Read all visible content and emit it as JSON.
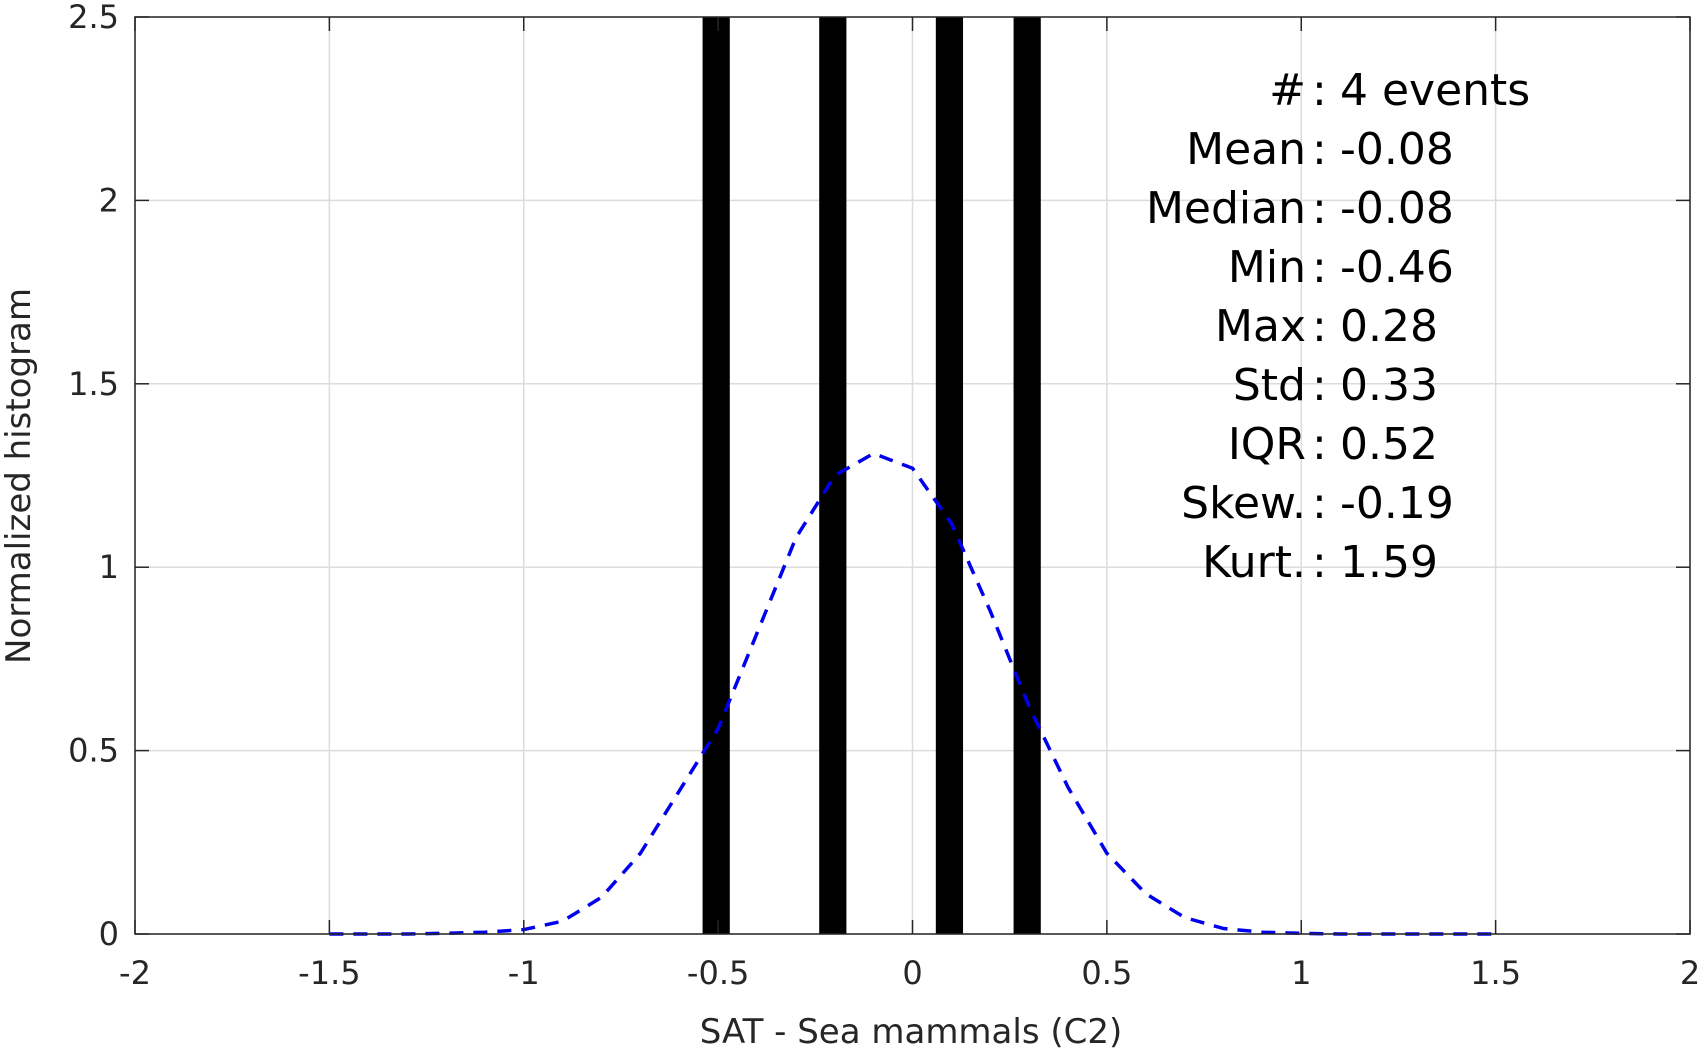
{
  "chart_data": {
    "type": "histogram",
    "xlabel": "SAT - Sea mammals (C2)",
    "ylabel": "Normalized histogram",
    "xlim": [
      -2,
      2
    ],
    "ylim": [
      0,
      2.5
    ],
    "x_ticks": [
      -2,
      -1.5,
      -1,
      -0.5,
      0,
      0.5,
      1,
      1.5,
      2
    ],
    "x_tick_labels": [
      "-2",
      "-1.5",
      "-1",
      "-0.5",
      "0",
      "0.5",
      "1",
      "1.5",
      "2"
    ],
    "y_ticks": [
      0,
      0.5,
      1,
      1.5,
      2,
      2.5
    ],
    "y_tick_labels": [
      "0",
      "0.5",
      "1",
      "1.5",
      "2",
      "2.5"
    ],
    "grid": true,
    "bar_color": "#000000",
    "bars": [
      {
        "x0": -0.54,
        "x1": -0.47,
        "value": 2.5
      },
      {
        "x0": -0.24,
        "x1": -0.17,
        "value": 2.5
      },
      {
        "x0": 0.06,
        "x1": 0.13,
        "value": 2.5
      },
      {
        "x0": 0.26,
        "x1": 0.33,
        "value": 2.5
      }
    ],
    "fit_curve": {
      "color": "#0000ee",
      "style": "dashed",
      "x": [
        -1.5,
        -1.4,
        -1.3,
        -1.2,
        -1.1,
        -1.0,
        -0.9,
        -0.8,
        -0.7,
        -0.6,
        -0.5,
        -0.4,
        -0.3,
        -0.2,
        -0.1,
        0.0,
        0.1,
        0.2,
        0.3,
        0.4,
        0.5,
        0.6,
        0.7,
        0.8,
        0.9,
        1.0,
        1.1,
        1.2,
        1.3,
        1.4,
        1.5
      ],
      "y": [
        0.0,
        0.0,
        0.0,
        0.002,
        0.005,
        0.012,
        0.035,
        0.1,
        0.22,
        0.39,
        0.56,
        0.82,
        1.08,
        1.25,
        1.31,
        1.27,
        1.12,
        0.88,
        0.62,
        0.4,
        0.22,
        0.11,
        0.045,
        0.015,
        0.005,
        0.002,
        0.0,
        0.0,
        0.0,
        0.0,
        0.0
      ]
    },
    "stats": [
      {
        "key": "#  ",
        "value": "4 events"
      },
      {
        "key": "Mean ",
        "value": "-0.08"
      },
      {
        "key": "Median ",
        "value": "-0.08"
      },
      {
        "key": "Min ",
        "value": "-0.46"
      },
      {
        "key": "Max ",
        "value": "0.28"
      },
      {
        "key": "Std ",
        "value": "0.33"
      },
      {
        "key": "IQR ",
        "value": "0.52"
      },
      {
        "key": "Skew. ",
        "value": "-0.19"
      },
      {
        "key": "Kurt. ",
        "value": "1.59"
      }
    ]
  }
}
